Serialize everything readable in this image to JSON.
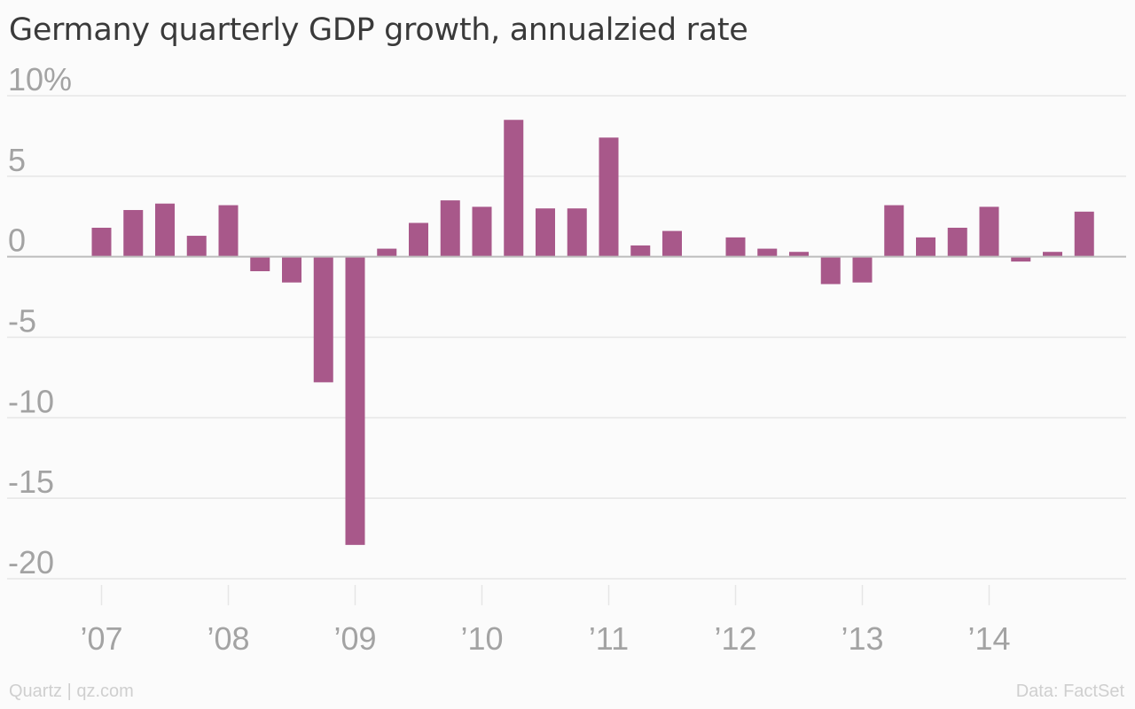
{
  "title": "Germany quarterly GDP growth, annualzied rate",
  "footer": {
    "source_left": "Quartz | qz.com",
    "source_right": "Data: FactSet"
  },
  "colors": {
    "bar": "#a8588a",
    "grid": "#e6e6e6",
    "zero_line": "#bdbdbd",
    "tick_text": "#a3a3a3"
  },
  "chart_data": {
    "type": "bar",
    "title": "Germany quarterly GDP growth, annualzied rate",
    "xlabel": "",
    "ylabel": "",
    "ylim": [
      -20,
      10
    ],
    "y_ticks": [
      {
        "value": 10,
        "label": "10%"
      },
      {
        "value": 5,
        "label": "5"
      },
      {
        "value": 0,
        "label": "0"
      },
      {
        "value": -5,
        "label": "-5"
      },
      {
        "value": -10,
        "label": "-10"
      },
      {
        "value": -15,
        "label": "-15"
      },
      {
        "value": -20,
        "label": "-20"
      }
    ],
    "x_ticks": [
      {
        "label": "’07",
        "quarter_index": 0
      },
      {
        "label": "’08",
        "quarter_index": 4
      },
      {
        "label": "’09",
        "quarter_index": 8
      },
      {
        "label": "’10",
        "quarter_index": 12
      },
      {
        "label": "’11",
        "quarter_index": 16
      },
      {
        "label": "’12",
        "quarter_index": 20
      },
      {
        "label": "’13",
        "quarter_index": 24
      },
      {
        "label": "’14",
        "quarter_index": 28
      }
    ],
    "categories": [
      "2007 Q1",
      "2007 Q2",
      "2007 Q3",
      "2007 Q4",
      "2008 Q1",
      "2008 Q2",
      "2008 Q3",
      "2008 Q4",
      "2009 Q1",
      "2009 Q2",
      "2009 Q3",
      "2009 Q4",
      "2010 Q1",
      "2010 Q2",
      "2010 Q3",
      "2010 Q4",
      "2011 Q1",
      "2011 Q2",
      "2011 Q3",
      "2011 Q4",
      "2012 Q1",
      "2012 Q2",
      "2012 Q3",
      "2012 Q4",
      "2013 Q1",
      "2013 Q2",
      "2013 Q3",
      "2013 Q4",
      "2014 Q1",
      "2014 Q2",
      "2014 Q3",
      "2014 Q4"
    ],
    "values": [
      1.8,
      2.9,
      3.3,
      1.3,
      3.2,
      -0.9,
      -1.6,
      -7.8,
      -17.9,
      0.5,
      2.1,
      3.5,
      3.1,
      8.5,
      3.0,
      3.0,
      7.4,
      0.7,
      1.6,
      0.0,
      1.2,
      0.5,
      0.3,
      -1.7,
      -1.6,
      3.2,
      1.2,
      1.8,
      3.1,
      -0.3,
      0.3,
      2.8
    ],
    "grid": true
  }
}
